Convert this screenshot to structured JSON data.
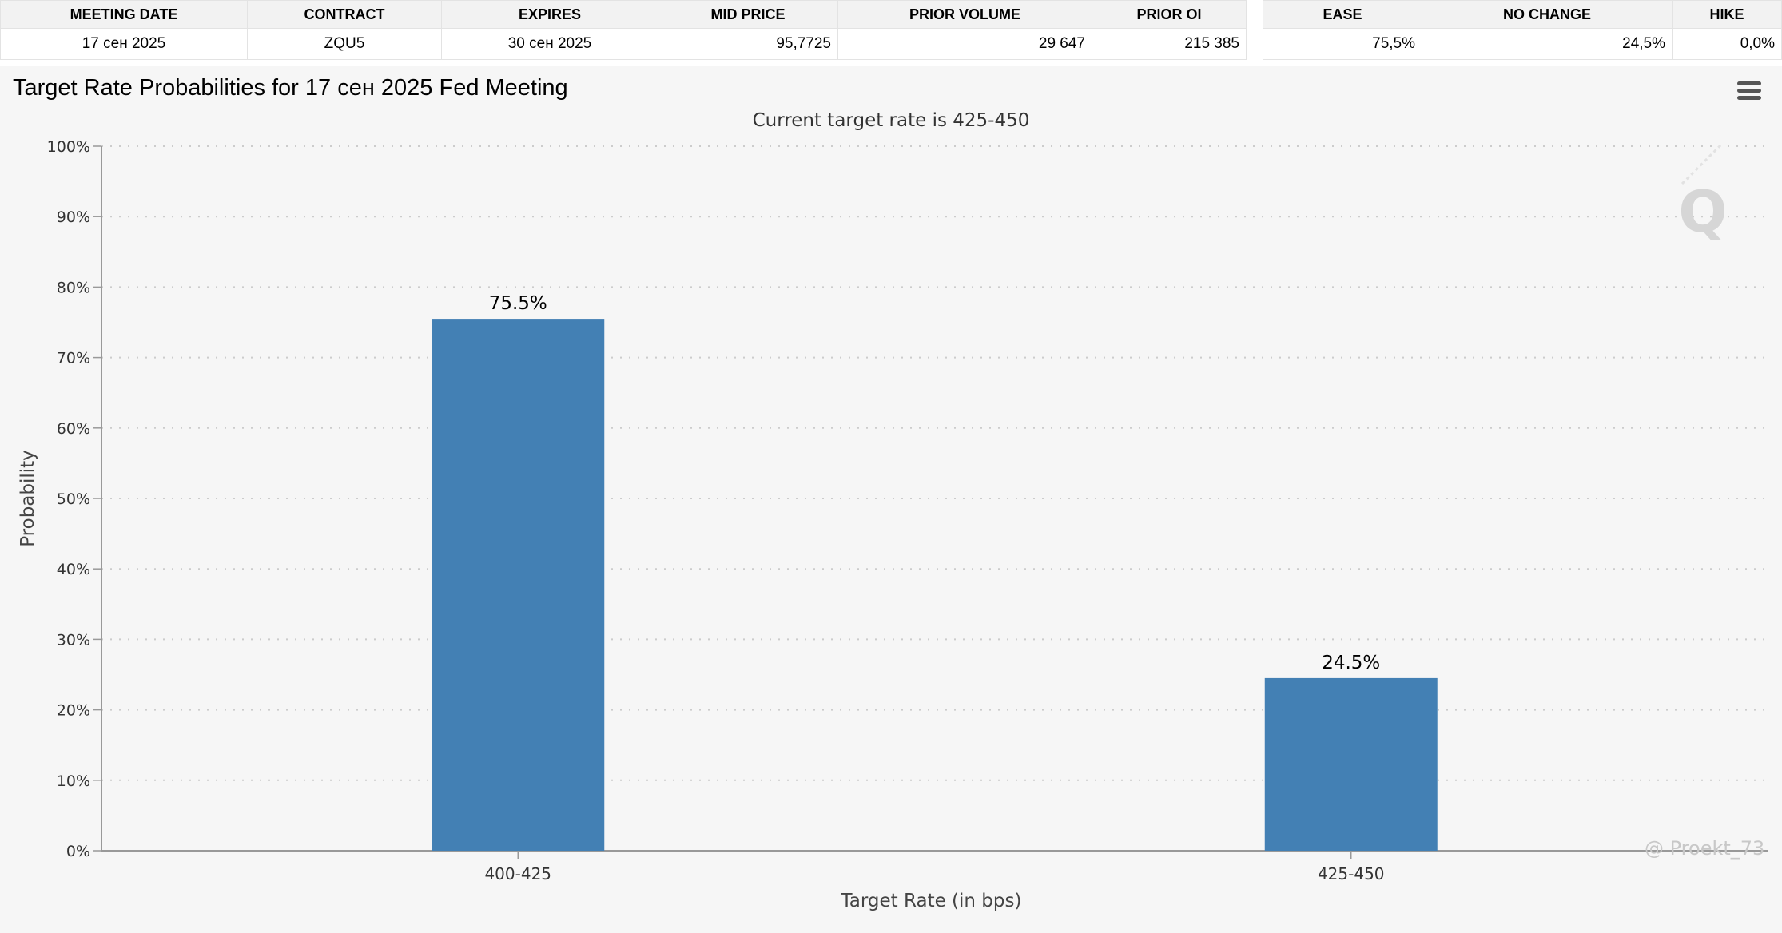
{
  "contract_table": {
    "headers": [
      "MEETING DATE",
      "CONTRACT",
      "EXPIRES",
      "MID PRICE",
      "PRIOR VOLUME",
      "PRIOR OI"
    ],
    "row": {
      "meeting_date": "17 сен 2025",
      "contract": "ZQU5",
      "expires": "30 сен 2025",
      "mid_price": "95,7725",
      "prior_volume": "29 647",
      "prior_oi": "215 385"
    }
  },
  "outcome_table": {
    "headers": [
      "EASE",
      "NO CHANGE",
      "HIKE"
    ],
    "row": {
      "ease": "75,5%",
      "no_change": "24,5%",
      "hike": "0,0%"
    }
  },
  "chart_data": {
    "type": "bar",
    "title": "Target Rate Probabilities for 17 сен 2025 Fed Meeting",
    "subtitle": "Current target rate is 425-450",
    "xlabel": "Target Rate (in bps)",
    "ylabel": "Probability",
    "categories": [
      "400-425",
      "425-450"
    ],
    "values": [
      75.5,
      24.5
    ],
    "data_labels": [
      "75.5%",
      "24.5%"
    ],
    "ylim": [
      0,
      100
    ],
    "yticks": [
      0,
      10,
      20,
      30,
      40,
      50,
      60,
      70,
      80,
      90,
      100
    ],
    "ytick_suffix": "%",
    "grid": true,
    "legend": "none",
    "bar_color": "#4380b4"
  },
  "watermark": "@ Proekt_73",
  "colors": {
    "panel_background": "#f6f6f6",
    "bar": "#4380b4",
    "grid": "#cccccc"
  }
}
